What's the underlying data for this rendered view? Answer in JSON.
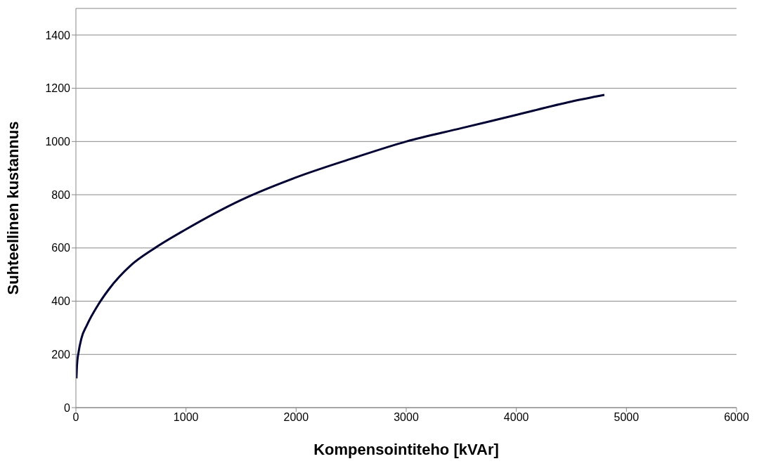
{
  "chart_data": {
    "type": "line",
    "xlabel": "Kompensointiteho [kVAr]",
    "ylabel": "Suhteellinen kustannus",
    "series": [
      {
        "color": "#000033",
        "x": [
          5,
          10,
          25,
          50,
          100,
          200,
          300,
          500,
          700,
          1000,
          1500,
          2000,
          2500,
          3000,
          3500,
          4000,
          4500,
          4800
        ],
        "values": [
          110,
          160,
          210,
          260,
          310,
          385,
          445,
          535,
          595,
          670,
          780,
          865,
          935,
          1000,
          1050,
          1100,
          1150,
          1175
        ]
      }
    ],
    "xlim": [
      0,
      6000
    ],
    "xticks": [
      0,
      1000,
      2000,
      3000,
      4000,
      5000,
      6000
    ],
    "ylim": [
      0,
      1500
    ],
    "yticks": [
      0,
      200,
      400,
      600,
      800,
      1000,
      1200,
      1400
    ],
    "grid": "y",
    "marker": "none",
    "line_style": "solid"
  }
}
